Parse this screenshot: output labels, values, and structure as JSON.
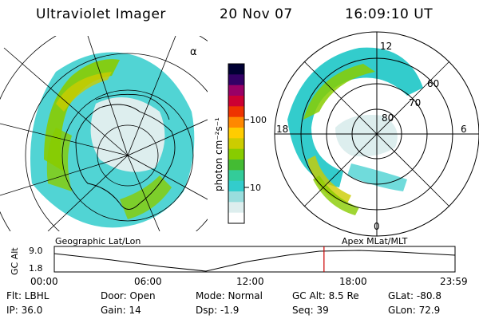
{
  "header": {
    "title": "Ultraviolet Imager",
    "date": "20 Nov 07",
    "time": "16:09:10 UT"
  },
  "left_map": {
    "corner_label": "α"
  },
  "colorbar": {
    "unit_label": "photon cm⁻²s⁻¹",
    "ticks": [
      "100",
      "10"
    ],
    "colors": [
      "#000033",
      "#330066",
      "#990066",
      "#cc0033",
      "#ee3300",
      "#ff8800",
      "#ffcc00",
      "#cccc00",
      "#88cc00",
      "#44bb33",
      "#33cc99",
      "#33cccc",
      "#99dddd",
      "#ddeeee",
      "#ffffff"
    ]
  },
  "right_map": {
    "clock_labels": {
      "top": "12",
      "bottom": "0",
      "left": "18",
      "right": "6"
    },
    "lat_labels": [
      "80",
      "70",
      "60"
    ]
  },
  "timeline": {
    "left_title": "Geographic Lat/Lon",
    "right_title": "Apex  MLat/MLT",
    "y_axis_label": "GC Alt",
    "y_ticks": [
      "9.0",
      "1.8"
    ],
    "x_ticks": [
      "00:00",
      "06:00",
      "12:00",
      "18:00",
      "23:59"
    ],
    "current_time_fraction": 0.673
  },
  "info": {
    "row1": {
      "filter": "Flt: LBHL",
      "door": "Door: Open",
      "mode": "Mode: Normal",
      "gc_alt": "GC Alt: 8.5 Re",
      "glat": "GLat:  -80.8"
    },
    "row2": {
      "ip": "IP: 36.0",
      "gain": "Gain: 14",
      "dsp": "Dsp:    -1.9",
      "seq": "Seq: 39",
      "glon": "GLon:  72.9"
    }
  }
}
